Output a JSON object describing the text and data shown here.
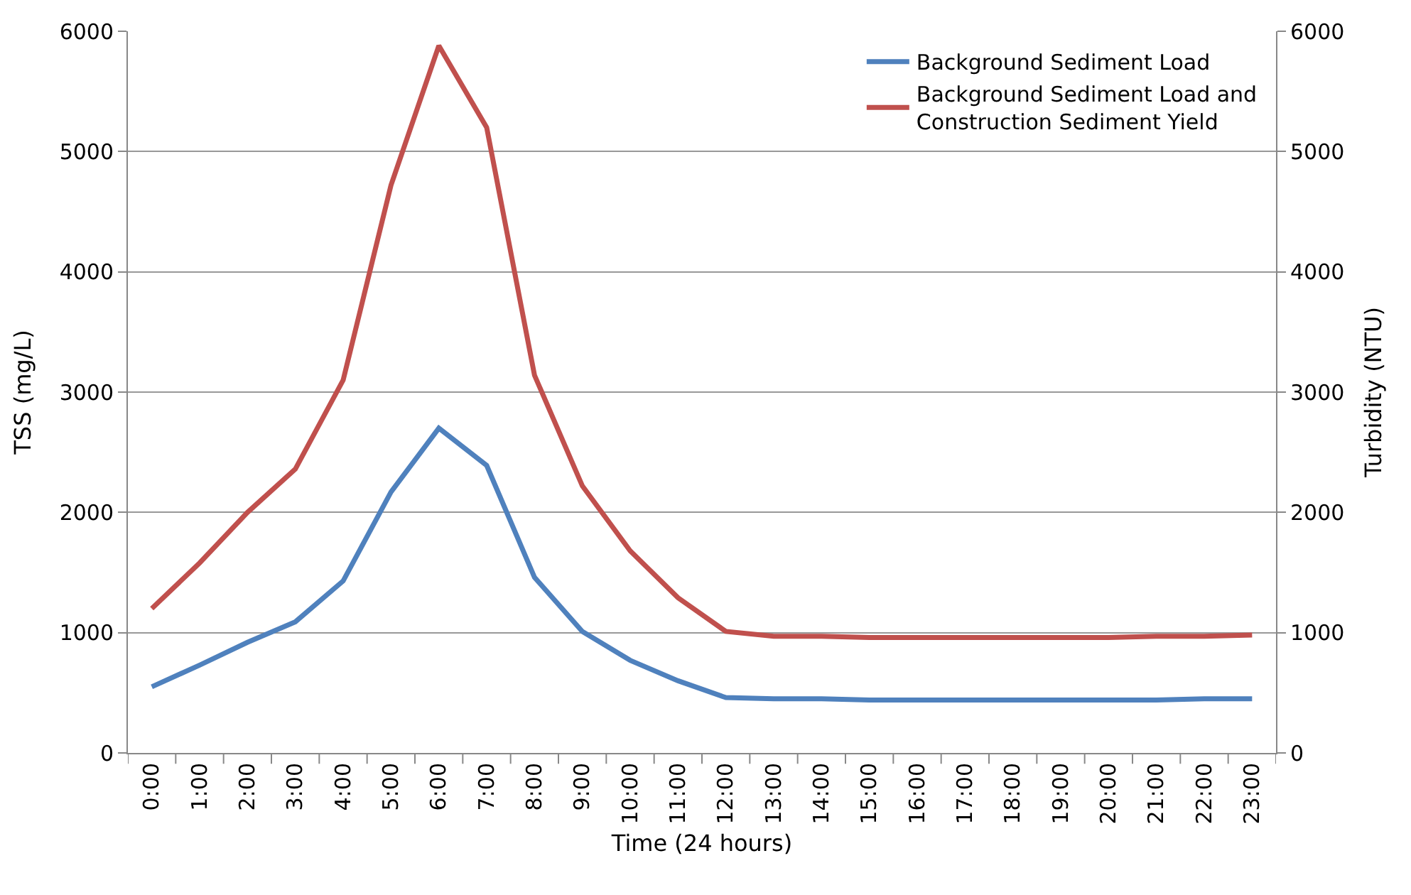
{
  "chart_data": {
    "type": "line",
    "xlabel": "Time (24 hours)",
    "ylabel": "TSS (mg/L)",
    "y2label": "Turbidity (NTU)",
    "categories": [
      "0:00",
      "1:00",
      "2:00",
      "3:00",
      "4:00",
      "5:00",
      "6:00",
      "7:00",
      "8:00",
      "9:00",
      "10:00",
      "11:00",
      "12:00",
      "13:00",
      "14:00",
      "15:00",
      "16:00",
      "17:00",
      "18:00",
      "19:00",
      "20:00",
      "21:00",
      "22:00",
      "23:00"
    ],
    "series": [
      {
        "name": "Background Sediment Load",
        "color": "#4f81bd",
        "values": [
          550,
          730,
          920,
          1090,
          1430,
          2170,
          2700,
          2390,
          1460,
          1010,
          770,
          600,
          460,
          450,
          450,
          440,
          440,
          440,
          440,
          440,
          440,
          440,
          450,
          450
        ]
      },
      {
        "name": "Background Sediment Load and Construction Sediment Yield",
        "color": "#c0504d",
        "values": [
          1200,
          1580,
          2000,
          2360,
          3100,
          4720,
          5880,
          5200,
          3140,
          2220,
          1680,
          1290,
          1010,
          970,
          970,
          960,
          960,
          960,
          960,
          960,
          960,
          970,
          970,
          980
        ]
      }
    ],
    "ylim": [
      0,
      6000
    ],
    "yticks": [
      0,
      1000,
      2000,
      3000,
      4000,
      5000,
      6000
    ],
    "y2lim": [
      0,
      6000
    ],
    "y2ticks": [
      0,
      1000,
      2000,
      3000,
      4000,
      5000,
      6000
    ],
    "grid": "y",
    "legend": "top right",
    "marker": "none",
    "line_style": "solid"
  }
}
